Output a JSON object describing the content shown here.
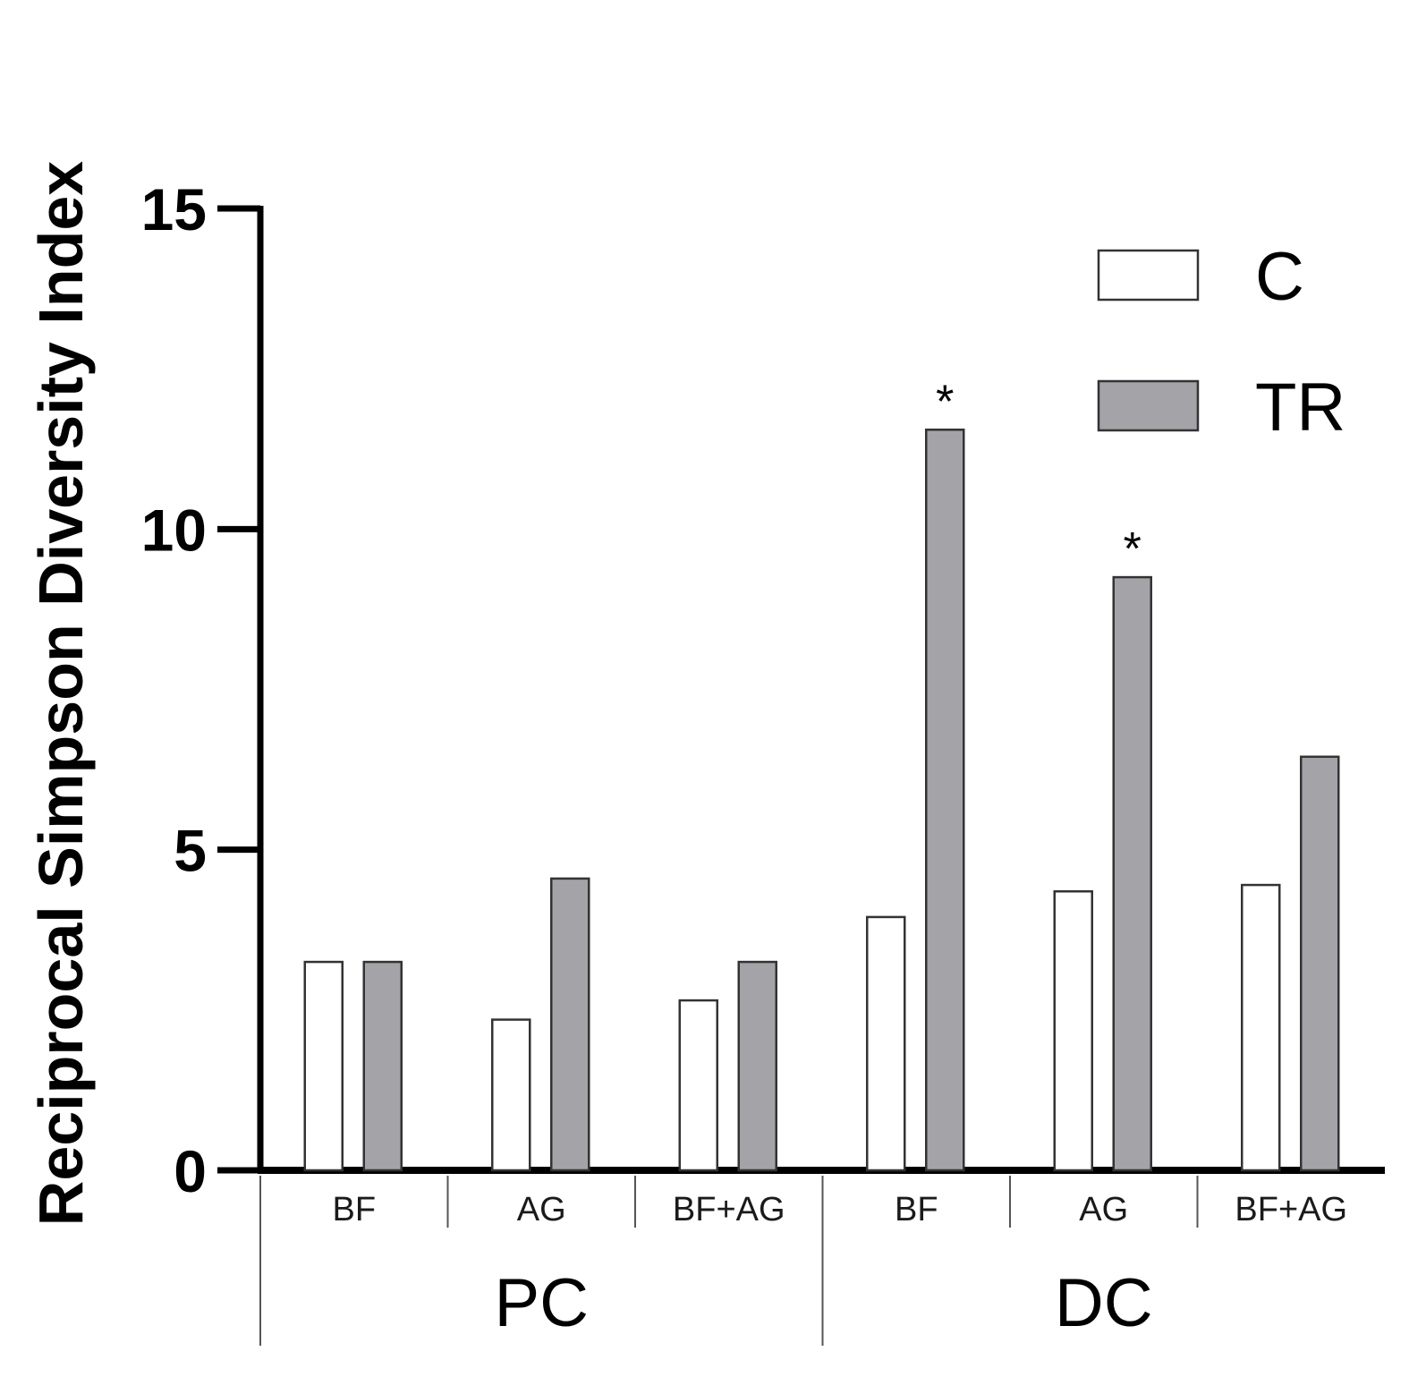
{
  "chart_data": {
    "type": "bar",
    "title": "",
    "xlabel": "",
    "ylabel": "Reciprocal Simpson Diversity Index",
    "ylim": [
      0,
      15
    ],
    "yticks": [
      "0",
      "5",
      "10",
      "15"
    ],
    "categories": [
      "BF",
      "AG",
      "BF+AG",
      "BF",
      "AG",
      "BF+AG"
    ],
    "groups": [
      {
        "label": "PC",
        "categories": [
          "BF",
          "AG",
          "BF+AG"
        ]
      },
      {
        "label": "DC",
        "categories": [
          "BF",
          "AG",
          "BF+AG"
        ]
      }
    ],
    "series": [
      {
        "name": "C",
        "color": "#ffffff",
        "values": [
          3.25,
          2.35,
          2.65,
          3.95,
          4.35,
          4.45
        ]
      },
      {
        "name": "TR",
        "color": "#a3a3a8",
        "values": [
          3.25,
          4.55,
          3.25,
          11.55,
          9.25,
          6.45
        ]
      }
    ],
    "annotations": [
      {
        "text": "*",
        "series": "TR",
        "category_index": 3
      },
      {
        "text": "*",
        "series": "TR",
        "category_index": 4
      }
    ],
    "legend": {
      "position": "top-right"
    }
  }
}
